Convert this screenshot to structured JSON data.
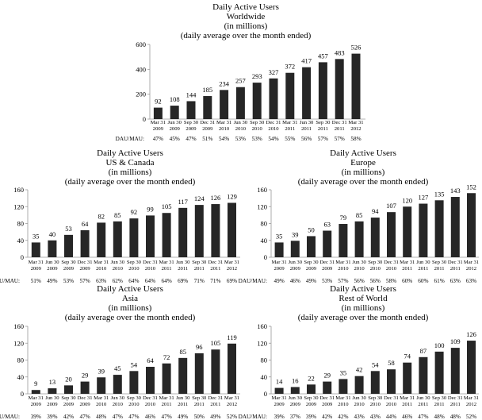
{
  "chart_data": [
    {
      "type": "bar",
      "title": "Daily Active Users",
      "subtitle_lines": [
        "Worldwide",
        "(in millions)",
        "(daily average over the month ended)"
      ],
      "categories": [
        [
          "Mar 31",
          "2009"
        ],
        [
          "Jun 30",
          "2009"
        ],
        [
          "Sep 30",
          "2009"
        ],
        [
          "Dec 31",
          "2009"
        ],
        [
          "Mar 31",
          "2010"
        ],
        [
          "Jun 30",
          "2010"
        ],
        [
          "Sep 30",
          "2010"
        ],
        [
          "Dec 31",
          "2010"
        ],
        [
          "Mar 31",
          "2011"
        ],
        [
          "Jun 30",
          "2011"
        ],
        [
          "Sep 30",
          "2011"
        ],
        [
          "Dec 31",
          "2011"
        ],
        [
          "Mar 31",
          "2012"
        ]
      ],
      "values": [
        92,
        108,
        144,
        185,
        234,
        257,
        293,
        327,
        372,
        417,
        457,
        483,
        526
      ],
      "ratio_label": "DAU/MAU:",
      "ratios": [
        "47%",
        "45%",
        "47%",
        "51%",
        "54%",
        "53%",
        "53%",
        "54%",
        "55%",
        "56%",
        "57%",
        "57%",
        "58%"
      ],
      "ylim": [
        0,
        600
      ],
      "yticks": [
        0,
        200,
        400,
        600
      ],
      "color": "#262626"
    },
    {
      "type": "bar",
      "title": "Daily Active Users",
      "subtitle_lines": [
        "US & Canada",
        "(in millions)",
        "(daily average over the month ended)"
      ],
      "categories": [
        [
          "Mar 31",
          "2009"
        ],
        [
          "Jun 30",
          "2009"
        ],
        [
          "Sep 30",
          "2009"
        ],
        [
          "Dec 31",
          "2009"
        ],
        [
          "Mar 31",
          "2010"
        ],
        [
          "Jun 30",
          "2010"
        ],
        [
          "Sep 30",
          "2010"
        ],
        [
          "Dec 31",
          "2010"
        ],
        [
          "Mar 31",
          "2011"
        ],
        [
          "Jun 30",
          "2011"
        ],
        [
          "Sep 30",
          "2011"
        ],
        [
          "Dec 31",
          "2011"
        ],
        [
          "Mar 31",
          "2012"
        ]
      ],
      "values": [
        35,
        40,
        53,
        64,
        82,
        85,
        92,
        99,
        105,
        117,
        124,
        126,
        129
      ],
      "ratio_label": "DAU/MAU:",
      "ratios": [
        "51%",
        "49%",
        "53%",
        "57%",
        "63%",
        "62%",
        "64%",
        "64%",
        "64%",
        "69%",
        "71%",
        "71%",
        "69%"
      ],
      "ylim": [
        0,
        160
      ],
      "yticks": [
        0,
        40,
        80,
        120,
        160
      ],
      "color": "#262626"
    },
    {
      "type": "bar",
      "title": "Daily Active Users",
      "subtitle_lines": [
        "Europe",
        "(in millions)",
        "(daily average over the month ended)"
      ],
      "categories": [
        [
          "Mar 31",
          "2009"
        ],
        [
          "Jun 30",
          "2009"
        ],
        [
          "Sep 30",
          "2009"
        ],
        [
          "Dec 31",
          "2009"
        ],
        [
          "Mar 31",
          "2010"
        ],
        [
          "Jun 30",
          "2010"
        ],
        [
          "Sep 30",
          "2010"
        ],
        [
          "Dec 31",
          "2010"
        ],
        [
          "Mar 31",
          "2011"
        ],
        [
          "Jun 30",
          "2011"
        ],
        [
          "Sep 30",
          "2011"
        ],
        [
          "Dec 31",
          "2011"
        ],
        [
          "Mar 31",
          "2012"
        ]
      ],
      "values": [
        35,
        39,
        50,
        63,
        79,
        85,
        94,
        107,
        120,
        127,
        135,
        143,
        152
      ],
      "ratio_label": "DAU/MAU:",
      "ratios": [
        "49%",
        "46%",
        "49%",
        "53%",
        "57%",
        "56%",
        "56%",
        "58%",
        "60%",
        "60%",
        "61%",
        "63%",
        "63%"
      ],
      "ylim": [
        0,
        160
      ],
      "yticks": [
        0,
        40,
        80,
        120,
        160
      ],
      "color": "#262626"
    },
    {
      "type": "bar",
      "title": "Daily Active Users",
      "subtitle_lines": [
        "Asia",
        "(in millions)",
        "(daily average over the month ended)"
      ],
      "categories": [
        [
          "Mar 31",
          "2009"
        ],
        [
          "Jun 30",
          "2009"
        ],
        [
          "Sep 30",
          "2009"
        ],
        [
          "Dec 31",
          "2009"
        ],
        [
          "Mar 31",
          "2010"
        ],
        [
          "Jun 30",
          "2010"
        ],
        [
          "Sep 30",
          "2010"
        ],
        [
          "Dec 31",
          "2010"
        ],
        [
          "Mar 31",
          "2011"
        ],
        [
          "Jun 30",
          "2011"
        ],
        [
          "Sep 30",
          "2011"
        ],
        [
          "Dec 31",
          "2011"
        ],
        [
          "Mar 31",
          "2012"
        ]
      ],
      "values": [
        9,
        13,
        20,
        29,
        39,
        45,
        54,
        64,
        72,
        85,
        96,
        105,
        119
      ],
      "ratio_label": "DAU/MAU:",
      "ratios": [
        "39%",
        "39%",
        "42%",
        "47%",
        "48%",
        "47%",
        "47%",
        "46%",
        "47%",
        "49%",
        "50%",
        "49%",
        "52%"
      ],
      "ylim": [
        0,
        160
      ],
      "yticks": [
        0,
        40,
        80,
        120,
        160
      ],
      "color": "#262626"
    },
    {
      "type": "bar",
      "title": "Daily Active Users",
      "subtitle_lines": [
        "Rest of World",
        "(in millions)",
        "(daily average over the month ended)"
      ],
      "categories": [
        [
          "Mar 31",
          "2009"
        ],
        [
          "Jun 30",
          "2009"
        ],
        [
          "Sep 30",
          "2009"
        ],
        [
          "Dec 31",
          "2009"
        ],
        [
          "Mar 31",
          "2010"
        ],
        [
          "Jun 30",
          "2010"
        ],
        [
          "Sep 30",
          "2010"
        ],
        [
          "Dec 31",
          "2010"
        ],
        [
          "Mar 31",
          "2011"
        ],
        [
          "Jun 30",
          "2011"
        ],
        [
          "Sep 30",
          "2011"
        ],
        [
          "Dec 31",
          "2011"
        ],
        [
          "Mar 31",
          "2012"
        ]
      ],
      "values": [
        14,
        16,
        22,
        29,
        35,
        42,
        54,
        58,
        74,
        87,
        100,
        109,
        126
      ],
      "ratio_label": "DAU/MAU:",
      "ratios": [
        "39%",
        "37%",
        "39%",
        "42%",
        "42%",
        "43%",
        "43%",
        "44%",
        "46%",
        "47%",
        "48%",
        "48%",
        "52%"
      ],
      "ylim": [
        0,
        160
      ],
      "yticks": [
        0,
        40,
        80,
        120,
        160
      ],
      "color": "#262626"
    }
  ]
}
